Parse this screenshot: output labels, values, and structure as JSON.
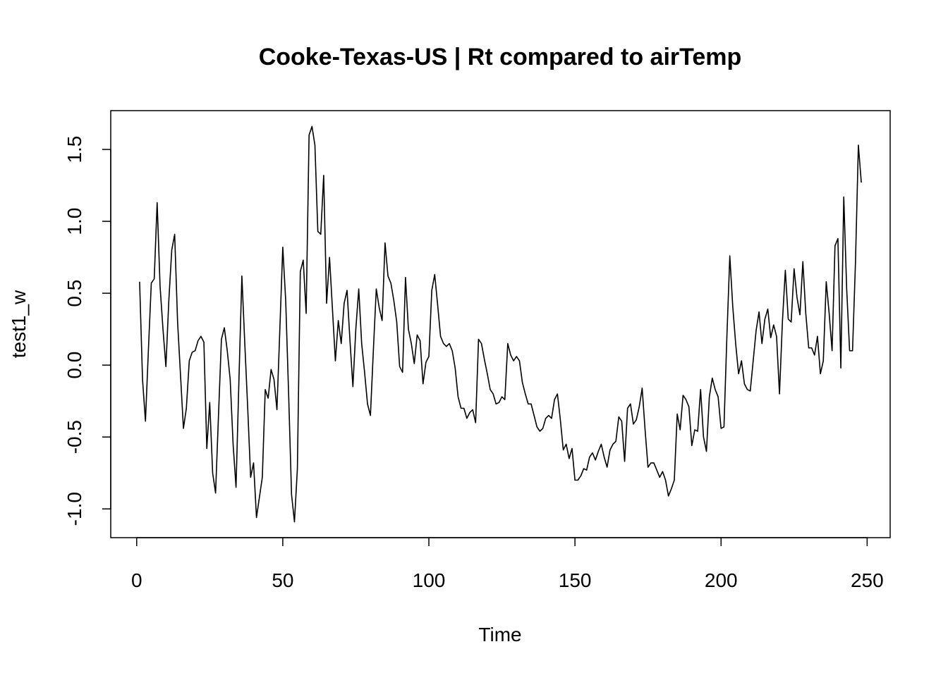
{
  "chart_data": {
    "type": "line",
    "title": "Cooke-Texas-US | Rt compared to airTemp",
    "x_label": "Time",
    "y_label": "test1_w",
    "x": [
      1,
      2,
      3,
      4,
      5,
      6,
      7,
      8,
      9,
      10,
      11,
      12,
      13,
      14,
      15,
      16,
      17,
      18,
      19,
      20,
      21,
      22,
      23,
      24,
      25,
      26,
      27,
      28,
      29,
      30,
      31,
      32,
      33,
      34,
      35,
      36,
      37,
      38,
      39,
      40,
      41,
      42,
      43,
      44,
      45,
      46,
      47,
      48,
      49,
      50,
      51,
      52,
      53,
      54,
      55,
      56,
      57,
      58,
      59,
      60,
      61,
      62,
      63,
      64,
      65,
      66,
      67,
      68,
      69,
      70,
      71,
      72,
      73,
      74,
      75,
      76,
      77,
      78,
      79,
      80,
      81,
      82,
      83,
      84,
      85,
      86,
      87,
      88,
      89,
      90,
      91,
      92,
      93,
      94,
      95,
      96,
      97,
      98,
      99,
      100,
      101,
      102,
      103,
      104,
      105,
      106,
      107,
      108,
      109,
      110,
      111,
      112,
      113,
      114,
      115,
      116,
      117,
      118,
      119,
      120,
      121,
      122,
      123,
      124,
      125,
      126,
      127,
      128,
      129,
      130,
      131,
      132,
      133,
      134,
      135,
      136,
      137,
      138,
      139,
      140,
      141,
      142,
      143,
      144,
      145,
      146,
      147,
      148,
      149,
      150,
      151,
      152,
      153,
      154,
      155,
      156,
      157,
      158,
      159,
      160,
      161,
      162,
      163,
      164,
      165,
      166,
      167,
      168,
      169,
      170,
      171,
      172,
      173,
      174,
      175,
      176,
      177,
      178,
      179,
      180,
      181,
      182,
      183,
      184,
      185,
      186,
      187,
      188,
      189,
      190,
      191,
      192,
      193,
      194,
      195,
      196,
      197,
      198,
      199,
      200,
      201,
      202,
      203,
      204,
      205,
      206,
      207,
      208,
      209,
      210,
      211,
      212,
      213,
      214,
      215,
      216,
      217,
      218,
      219,
      220,
      221,
      222,
      223,
      224,
      225,
      226,
      227,
      228,
      229,
      230,
      231,
      232,
      233,
      234,
      235,
      236,
      237,
      238,
      239,
      240,
      241,
      242,
      243,
      244,
      245,
      246,
      247,
      248
    ],
    "series": [
      {
        "color": "#000000",
        "values": [
          0.58,
          -0.1,
          -0.39,
          0.1,
          0.57,
          0.6,
          1.13,
          0.55,
          0.25,
          -0.01,
          0.45,
          0.8,
          0.91,
          0.3,
          -0.07,
          -0.44,
          -0.3,
          0.03,
          0.09,
          0.1,
          0.17,
          0.2,
          0.16,
          -0.58,
          -0.26,
          -0.75,
          -0.89,
          -0.35,
          0.18,
          0.26,
          0.1,
          -0.1,
          -0.55,
          -0.85,
          -0.1,
          0.62,
          0.15,
          -0.3,
          -0.78,
          -0.68,
          -1.06,
          -0.92,
          -0.78,
          -0.17,
          -0.23,
          -0.03,
          -0.1,
          -0.31,
          0.25,
          0.82,
          0.45,
          -0.2,
          -0.9,
          -1.09,
          -0.72,
          0.65,
          0.73,
          0.36,
          1.6,
          1.66,
          1.53,
          0.93,
          0.91,
          1.32,
          0.43,
          0.75,
          0.39,
          0.03,
          0.31,
          0.15,
          0.43,
          0.52,
          0.17,
          -0.15,
          0.25,
          0.53,
          0.15,
          -0.05,
          -0.27,
          -0.35,
          0.1,
          0.53,
          0.4,
          0.31,
          0.85,
          0.62,
          0.57,
          0.45,
          0.3,
          -0.01,
          -0.05,
          0.61,
          0.25,
          0.15,
          0.01,
          0.21,
          0.17,
          -0.13,
          0.02,
          0.06,
          0.52,
          0.63,
          0.42,
          0.2,
          0.15,
          0.13,
          0.15,
          0.1,
          -0.02,
          -0.22,
          -0.3,
          -0.3,
          -0.37,
          -0.33,
          -0.31,
          -0.4,
          0.18,
          0.15,
          0.04,
          -0.06,
          -0.17,
          -0.2,
          -0.27,
          -0.26,
          -0.22,
          -0.24,
          0.15,
          0.07,
          0.03,
          0.06,
          0.03,
          -0.12,
          -0.2,
          -0.27,
          -0.27,
          -0.35,
          -0.43,
          -0.46,
          -0.44,
          -0.37,
          -0.35,
          -0.37,
          -0.24,
          -0.2,
          -0.38,
          -0.59,
          -0.55,
          -0.65,
          -0.58,
          -0.8,
          -0.8,
          -0.77,
          -0.72,
          -0.73,
          -0.64,
          -0.61,
          -0.66,
          -0.6,
          -0.55,
          -0.64,
          -0.71,
          -0.59,
          -0.55,
          -0.53,
          -0.36,
          -0.39,
          -0.67,
          -0.3,
          -0.27,
          -0.41,
          -0.38,
          -0.29,
          -0.16,
          -0.45,
          -0.71,
          -0.68,
          -0.68,
          -0.73,
          -0.78,
          -0.74,
          -0.8,
          -0.91,
          -0.86,
          -0.8,
          -0.34,
          -0.45,
          -0.21,
          -0.24,
          -0.29,
          -0.56,
          -0.45,
          -0.46,
          -0.17,
          -0.5,
          -0.6,
          -0.22,
          -0.09,
          -0.17,
          -0.22,
          -0.44,
          -0.43,
          0.2,
          0.76,
          0.41,
          0.15,
          -0.06,
          0.03,
          -0.13,
          -0.17,
          -0.18,
          0.03,
          0.24,
          0.37,
          0.15,
          0.32,
          0.39,
          0.19,
          0.28,
          0.2,
          -0.2,
          0.3,
          0.66,
          0.32,
          0.3,
          0.67,
          0.47,
          0.35,
          0.72,
          0.36,
          0.12,
          0.12,
          0.07,
          0.2,
          -0.06,
          0.03,
          0.58,
          0.36,
          0.1,
          0.83,
          0.88,
          -0.02,
          1.17,
          0.53,
          0.1,
          0.1,
          0.71,
          1.53,
          1.27
        ]
      }
    ],
    "xlim": [
      -8.88,
      257.88
    ],
    "ylim": [
      -1.2,
      1.77
    ],
    "xticks": [
      0,
      50,
      100,
      150,
      200,
      250
    ],
    "yticks": [
      {
        "value": -1,
        "label": "-1.0"
      },
      -0.5,
      {
        "value": 0,
        "label": "0.0"
      },
      0.5,
      {
        "value": 1,
        "label": "1.0"
      },
      1.5
    ]
  }
}
